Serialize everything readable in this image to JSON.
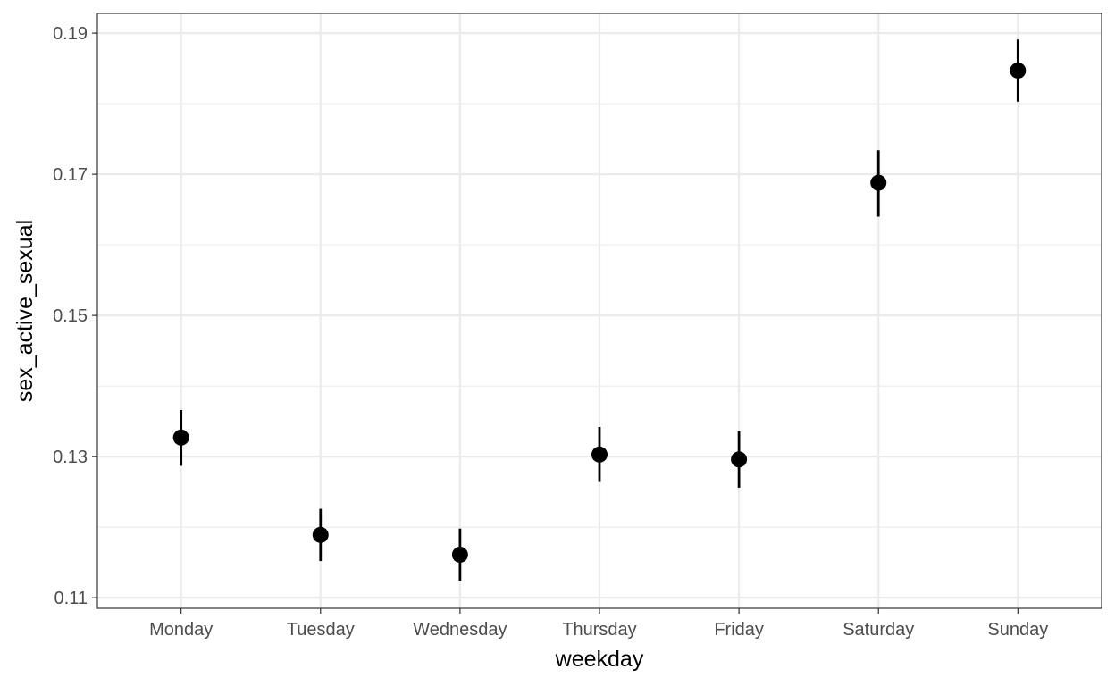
{
  "chart_data": {
    "type": "scatter",
    "title": "",
    "xlabel": "weekday",
    "ylabel": "sex_active_sexual",
    "categories": [
      "Monday",
      "Tuesday",
      "Wednesday",
      "Thursday",
      "Friday",
      "Saturday",
      "Sunday"
    ],
    "series": [
      {
        "values": [
          0.1327,
          0.1189,
          0.1161,
          0.1303,
          0.1296,
          0.1688,
          0.1847
        ],
        "lower": [
          0.1287,
          0.1152,
          0.1124,
          0.1264,
          0.1256,
          0.164,
          0.1803
        ],
        "upper": [
          0.1366,
          0.1226,
          0.1198,
          0.1342,
          0.1336,
          0.1734,
          0.1891
        ]
      }
    ],
    "yticks": [
      "0.11",
      "0.13",
      "0.15",
      "0.17",
      "0.19"
    ],
    "ylim": [
      0.1085,
      0.1928
    ],
    "grid": true,
    "legend": "none",
    "colors": {
      "point": "#000000",
      "grid": "#ebebeb",
      "panel_border": "#333333"
    }
  }
}
